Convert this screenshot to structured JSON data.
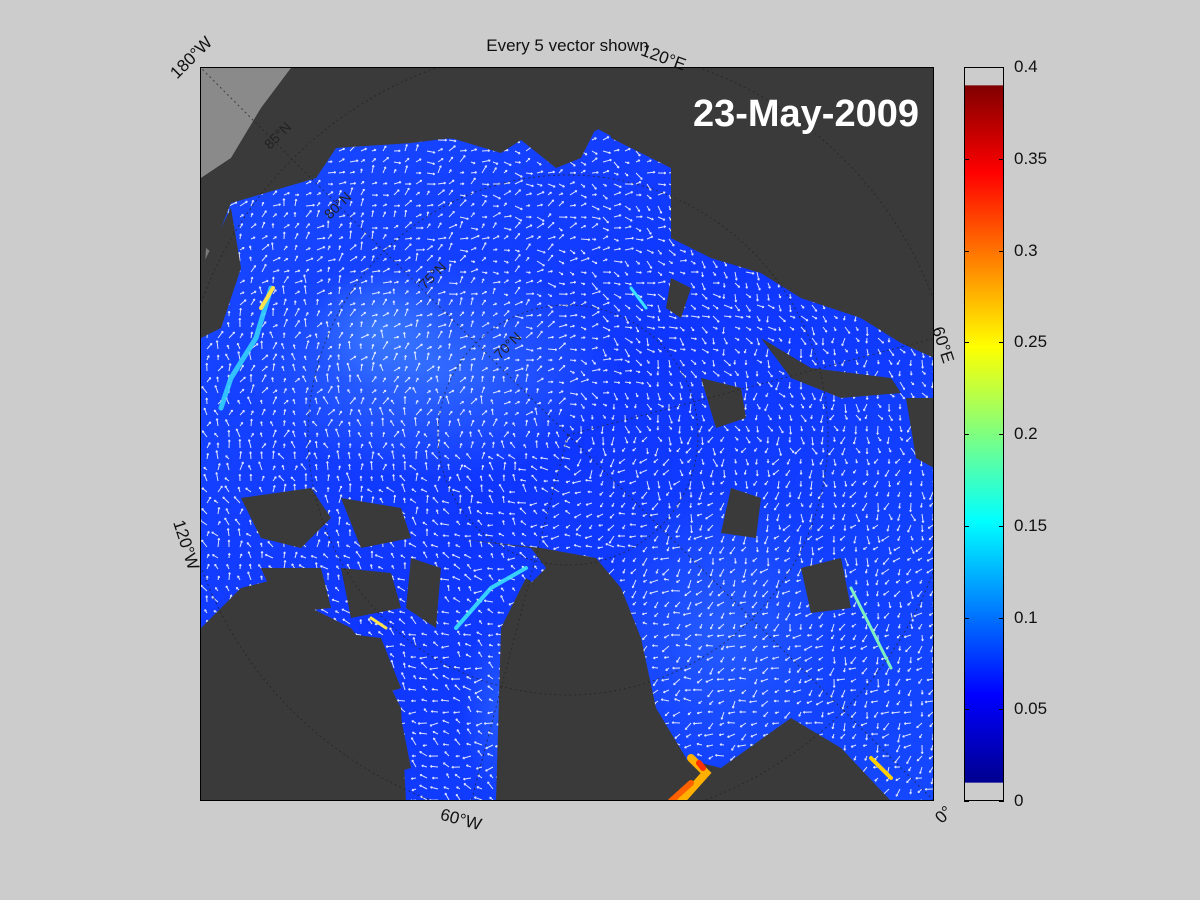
{
  "figure": {
    "title": "Every 5 vector shown",
    "date": "23-May-2009"
  },
  "map": {
    "type": "polar-stereographic",
    "longitude_labels": [
      "180°W",
      "120°E",
      "60°E",
      "0°",
      "60°W",
      "120°W"
    ],
    "latitude_labels": [
      "85°N",
      "80°N",
      "75°N",
      "70°N"
    ],
    "colors": {
      "land": "#3a3a3a",
      "background_land": "#888888",
      "ice_low": "#0a2cff",
      "ice_mid": "#2a7bff",
      "ice_high": "#ffd000",
      "vector": "#ffffff"
    }
  },
  "colorbar": {
    "min": 0,
    "max": 0.4,
    "ticks": [
      "0.4",
      "0.35",
      "0.3",
      "0.25",
      "0.2",
      "0.15",
      "0.1",
      "0.05",
      "0"
    ],
    "colormap": "jet"
  }
}
